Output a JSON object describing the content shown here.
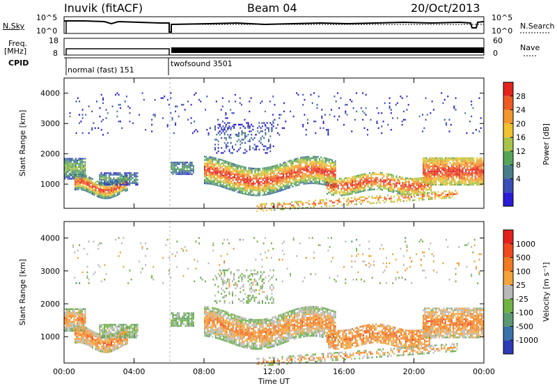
{
  "header": {
    "station": "Inuvik (fitACF)",
    "beam": "Beam 04",
    "date": "20/Oct/2013"
  },
  "top_panels": {
    "nsky_label": "N.Sky",
    "nsky_ticks": [
      "10^5",
      "10^0"
    ],
    "nsearch_label": "N.Search",
    "nsearch_ticks": [
      "10^5",
      "10^0"
    ],
    "freq_label_line1": "Freq.",
    "freq_label_line2": "[MHz]",
    "freq_ticks": [
      "18",
      "8"
    ],
    "nave_label": "Nave",
    "nave_ticks": [
      "60",
      "0"
    ],
    "cpid_label": "CPID",
    "cpid_segments": [
      {
        "name": "normal (fast) 151",
        "start_hour": 0.0,
        "end_hour": 6.05
      },
      {
        "name": "twofsound 3501",
        "start_hour": 6.05,
        "end_hour": 24.0
      }
    ]
  },
  "chart_data": [
    {
      "type": "heatmap",
      "title": "",
      "xlabel": "",
      "ylabel": "Slant Range [km]",
      "xlim": [
        0,
        24
      ],
      "ylim": [
        200,
        4500
      ],
      "x_ticks": [
        "00:00",
        "04:00",
        "08:00",
        "12:00",
        "16:00",
        "20:00",
        "00:00"
      ],
      "y_ticks": [
        1000,
        2000,
        3000,
        4000
      ],
      "colorbar": {
        "label": "Power [dB]",
        "tick_labels": [
          "28",
          "24",
          "20",
          "16",
          "12",
          "8",
          "4"
        ],
        "colors": [
          "#2a1bd6",
          "#3a4fb8",
          "#4a7f8a",
          "#56a45a",
          "#a9c34a",
          "#f1c232",
          "#f2972e",
          "#ee5a24",
          "#e3231c"
        ]
      }
    },
    {
      "type": "heatmap",
      "title": "",
      "xlabel": "Time UT",
      "ylabel": "Slant Range [km]",
      "xlim": [
        0,
        24
      ],
      "ylim": [
        200,
        4500
      ],
      "x_ticks": [
        "00:00",
        "04:00",
        "08:00",
        "12:00",
        "16:00",
        "20:00",
        "00:00"
      ],
      "y_ticks": [
        1000,
        2000,
        3000,
        4000
      ],
      "colorbar": {
        "label": "Velocity [m s⁻¹]",
        "tick_labels": [
          "1000",
          "500",
          "100",
          "25",
          "-25",
          "-100",
          "-500",
          "-1000"
        ],
        "colors": [
          "#2d3bb7",
          "#3a73a8",
          "#5d9a73",
          "#72b247",
          "#b9b9b9",
          "#f3a43c",
          "#f27a22",
          "#ee4a1e",
          "#e2201b"
        ]
      }
    }
  ]
}
